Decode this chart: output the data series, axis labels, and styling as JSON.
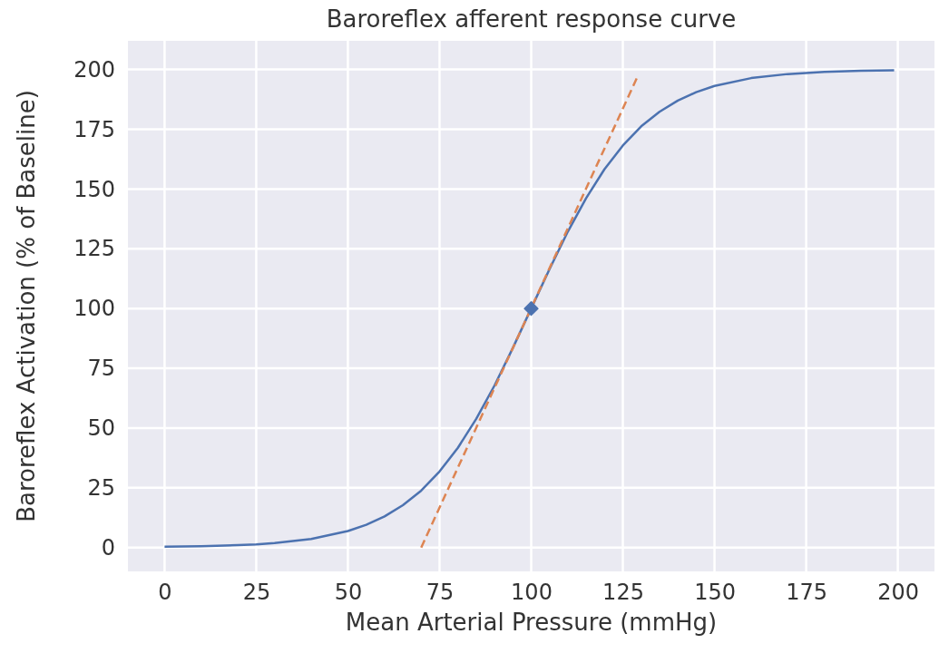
{
  "chart_data": {
    "type": "line",
    "title": "Baroreflex afferent response curve",
    "xlabel": "Mean Arterial Pressure (mmHg)",
    "ylabel": "Baroreflex Activation (% of Baseline)",
    "xlim": [
      -10,
      210
    ],
    "xticks": [
      0,
      25,
      50,
      75,
      100,
      125,
      150,
      175,
      200
    ],
    "ylim": [
      -10,
      212
    ],
    "yticks": [
      0,
      25,
      50,
      75,
      100,
      125,
      150,
      175,
      200
    ],
    "grid": true,
    "line_style": "solid",
    "series": [
      {
        "color": "#4c72b0",
        "x": [
          0,
          10,
          20,
          25,
          30,
          40,
          50,
          55,
          60,
          65,
          70,
          75,
          80,
          85,
          90,
          95,
          100,
          105,
          110,
          115,
          120,
          125,
          130,
          135,
          140,
          145,
          150,
          160,
          170,
          180,
          190,
          199
        ],
        "values": [
          0.3,
          0.5,
          1.0,
          1.3,
          1.9,
          3.6,
          6.9,
          9.5,
          13,
          17.7,
          23.8,
          31.8,
          41.7,
          53.8,
          67.8,
          83.5,
          100,
          116.5,
          132.2,
          146.2,
          158.3,
          168.2,
          176.2,
          182.3,
          187,
          190.5,
          193.1,
          196.4,
          198.1,
          199,
          199.5,
          199.7
        ]
      },
      {
        "type": "line",
        "color": "#dd8452",
        "line_style": "dashed",
        "x": [
          70,
          129
        ],
        "values": [
          0,
          197
        ]
      },
      {
        "type": "scatter",
        "color": "#4c72b0",
        "marker": "diamond",
        "x": [
          100
        ],
        "values": [
          100
        ]
      }
    ]
  }
}
